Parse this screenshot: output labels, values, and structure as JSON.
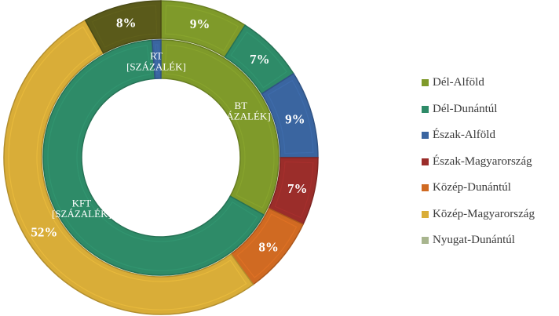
{
  "chart_data": {
    "type": "doughnut",
    "rings": [
      {
        "name": "",
        "slices": [
          {
            "label": "BT [SZÁZALÉK]",
            "value": 33.1,
            "color": "#7f9a2a",
            "category": "Dél-Alföld"
          },
          {
            "label": "KFT [SZÁZALÉK]",
            "value": 65.7,
            "color": "#2e8b68",
            "category": "Dél-Dunántúl"
          },
          {
            "label": "RT [SZÁZALÉK]",
            "value": 1.2,
            "color": "#3a65a0",
            "category": "Észak-Alföld"
          }
        ]
      },
      {
        "name": "",
        "slices": [
          {
            "label": "9%",
            "value": 9,
            "color": "#7f9a2a",
            "category": "Dél-Alföld"
          },
          {
            "label": "7%",
            "value": 7,
            "color": "#2e8b68",
            "category": "Dél-Dunántúl"
          },
          {
            "label": "9%",
            "value": 9,
            "color": "#3a65a0",
            "category": "Észak-Alföld"
          },
          {
            "label": "7%",
            "value": 7,
            "color": "#9b2d2a",
            "category": "Észak-Magyarország"
          },
          {
            "label": "8%",
            "value": 8,
            "color": "#d06a22",
            "category": "Közép-Dunántúl"
          },
          {
            "label": "52%",
            "value": 52,
            "color": "#d9ad38",
            "category": "Közép-Magyarország"
          },
          {
            "label": "8%",
            "value": 8,
            "color": "#5a5a1a",
            "category": "Nyugat-Dunántúl"
          }
        ]
      }
    ],
    "legend": {
      "position": "right",
      "items": [
        {
          "label": "Dél-Alföld",
          "color": "#7f9a2a"
        },
        {
          "label": "Dél-Dunántúl",
          "color": "#2e8b68"
        },
        {
          "label": "Észak-Alföld",
          "color": "#3a65a0"
        },
        {
          "label": "Észak-Magyarország",
          "color": "#9b2d2a"
        },
        {
          "label": "Közép-Dunántúl",
          "color": "#d06a22"
        },
        {
          "label": "Közép-Magyarország",
          "color": "#d9ad38"
        },
        {
          "label": "Nyugat-Dunántúl",
          "color": "#a8b58e"
        }
      ]
    }
  }
}
